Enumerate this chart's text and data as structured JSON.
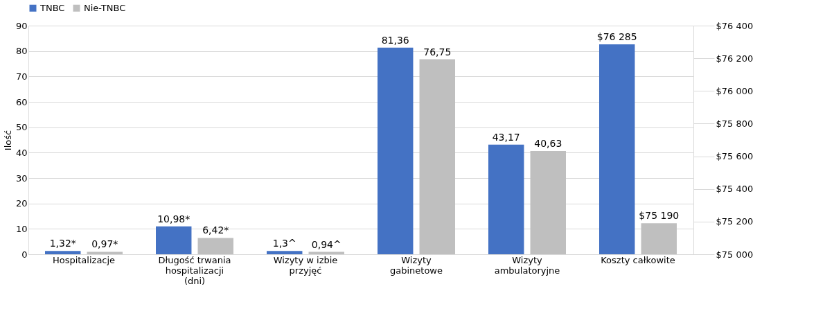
{
  "chart_data": {
    "type": "bar",
    "ylabel": "Ilość",
    "categories": [
      "Hospitalizacje",
      "Długość trwania hospitalizacji (dni)",
      "Wizyty w izbie przyjęć",
      "Wizyty gabinetowe",
      "Wizyty ambulatoryjne",
      "Koszty całkowite"
    ],
    "series": [
      {
        "name": "TNBC",
        "color": "#4472c4",
        "values": [
          1.32,
          10.98,
          1.3,
          81.36,
          43.17,
          null
        ],
        "value_labels": [
          "1,32*",
          "10,98*",
          "1,3^",
          "81,36",
          "43,17",
          null
        ]
      },
      {
        "name": "Nie-TNBC",
        "color": "#bfbfbf",
        "values": [
          0.97,
          6.42,
          0.94,
          76.75,
          40.63,
          null
        ],
        "value_labels": [
          "0,97*",
          "6,42*",
          "0,94^",
          "76,75",
          "40,63",
          null
        ]
      },
      {
        "axis": "y2",
        "color": "#4472c4",
        "values": [
          null,
          null,
          null,
          null,
          null,
          76285
        ],
        "value_labels": [
          null,
          null,
          null,
          null,
          null,
          "$76 285"
        ]
      },
      {
        "axis": "y2",
        "color": "#bfbfbf",
        "values": [
          null,
          null,
          null,
          null,
          null,
          75190
        ],
        "value_labels": [
          null,
          null,
          null,
          null,
          null,
          "$75 190"
        ]
      }
    ],
    "ylim": [
      0,
      90
    ],
    "yticks": [
      0,
      10,
      20,
      30,
      40,
      50,
      60,
      70,
      80,
      90
    ],
    "y2lim": [
      75000,
      76400
    ],
    "y2ticks": [
      {
        "value": 75000,
        "label": "$75 000"
      },
      {
        "value": 75200,
        "label": "$75 200"
      },
      {
        "value": 75400,
        "label": "$75 400"
      },
      {
        "value": 75600,
        "label": "$75 600"
      },
      {
        "value": 75800,
        "label": "$75 800"
      },
      {
        "value": 76000,
        "label": "$76 000"
      },
      {
        "value": 76200,
        "label": "$76 200"
      },
      {
        "value": 76400,
        "label": "$76 400"
      }
    ],
    "grid": "y",
    "legend": "top"
  }
}
